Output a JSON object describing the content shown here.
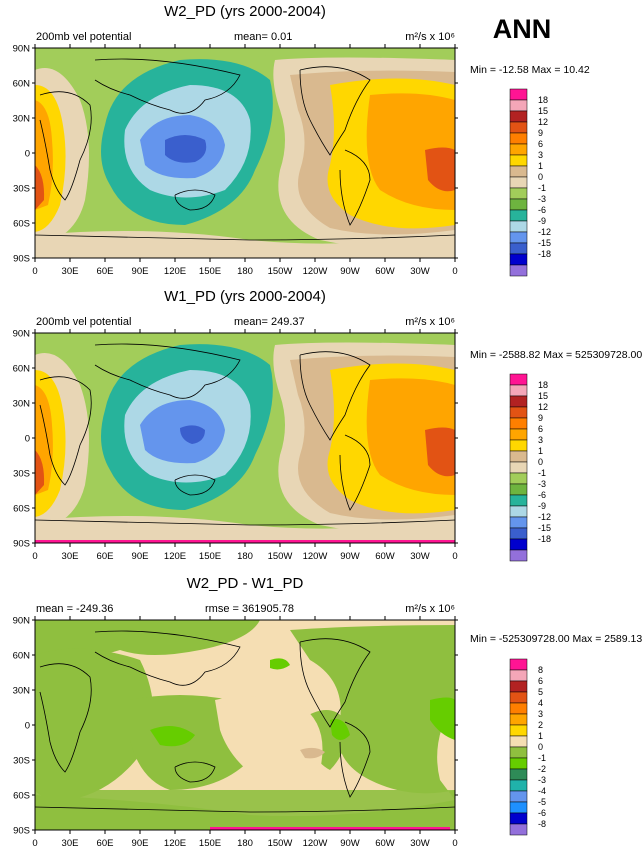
{
  "page": {
    "season_label": "ANN"
  },
  "colors": {
    "ocean": "#ffffff",
    "coast": "#000000",
    "pos_scale": [
      "#e8d6b5",
      "#d9b98f",
      "#ffd700",
      "#ffa500",
      "#ff7f00",
      "#e25314",
      "#b22222",
      "#f4a6b8",
      "#ff1493"
    ],
    "neg_scale": [
      "#a2cd5a",
      "#6eb43f",
      "#27b39b",
      "#add8e6",
      "#6495ed",
      "#3a5fcd",
      "#0000cd",
      "#9370db"
    ],
    "diff_pos": [
      "#f5deb3",
      "#ffd700",
      "#ffa500",
      "#ff7f00",
      "#e25314",
      "#b22222",
      "#f4a6b8",
      "#ff1493"
    ],
    "diff_neg": [
      "#8fbf3f",
      "#66cd00",
      "#2e8b57",
      "#20b2aa",
      "#6495ed",
      "#1e90ff",
      "#0000cd",
      "#9370db"
    ]
  },
  "axes": {
    "lat_labels": [
      "90N",
      "60N",
      "30N",
      "0",
      "30S",
      "60S",
      "90S"
    ],
    "lon_labels": [
      "0",
      "30E",
      "60E",
      "90E",
      "120E",
      "150E",
      "180",
      "150W",
      "120W",
      "90W",
      "60W",
      "30W",
      "0"
    ]
  },
  "panels": [
    {
      "title": "W2_PD (yrs 2000-2004)",
      "left_label": "200mb vel potential",
      "center_label": "mean=   0.01",
      "units_label": "m²/s x 10⁶",
      "stats": "Min = -12.58 Max =  10.42",
      "levels": [
        "18",
        "15",
        "12",
        "9",
        "6",
        "3",
        "1",
        "0",
        "-1",
        "-3",
        "-6",
        "-9",
        "-12",
        "-15",
        "-18"
      ]
    },
    {
      "title": "W1_PD (yrs 2000-2004)",
      "left_label": "200mb vel potential",
      "center_label": "mean= 249.37",
      "units_label": "m²/s x 10⁶",
      "stats": "Min = -2588.82 Max = 525309728.00",
      "levels": [
        "18",
        "15",
        "12",
        "9",
        "6",
        "3",
        "1",
        "0",
        "-1",
        "-3",
        "-6",
        "-9",
        "-12",
        "-15",
        "-18"
      ]
    },
    {
      "title": "W2_PD - W1_PD",
      "left_label": "mean = -249.36",
      "center_label": "rmse = 361905.78",
      "units_label": "m²/s x 10⁶",
      "stats": "Min = -525309728.00 Max = 2589.13",
      "levels": [
        "8",
        "6",
        "5",
        "4",
        "3",
        "2",
        "1",
        "0",
        "-1",
        "-2",
        "-3",
        "-4",
        "-5",
        "-6",
        "-8"
      ]
    }
  ]
}
